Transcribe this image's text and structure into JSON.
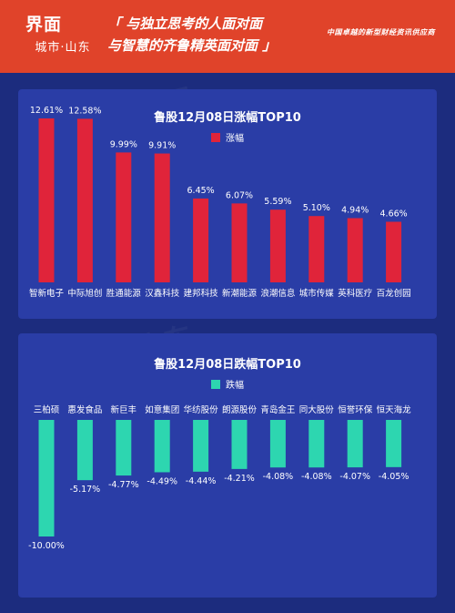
{
  "header": {
    "logo_main": "界面",
    "logo_sub": "城市·山东",
    "slogan_line1": "「 与独立思考的人面对面",
    "slogan_line2": "与智慧的齐鲁精英面对面 」",
    "tagline": "中国卓越的新型财经资讯供应商",
    "bg_color": "#e0432a"
  },
  "watermark": [
    "界面",
    "城市·山东"
  ],
  "chart_data": [
    {
      "type": "bar",
      "title": "鲁股12月08日涨幅TOP10",
      "series": [
        {
          "name": "涨幅",
          "color": "#e0243a",
          "values": [
            12.61,
            12.58,
            9.99,
            9.91,
            6.45,
            6.07,
            5.59,
            5.1,
            4.94,
            4.66
          ],
          "labels": [
            "12.61%",
            "12.58%",
            "9.99%",
            "9.91%",
            "6.45%",
            "6.07%",
            "5.59%",
            "5.10%",
            "4.94%",
            "4.66%"
          ]
        }
      ],
      "categories": [
        "智新电子",
        "中际旭创",
        "胜通能源",
        "汉鑫科技",
        "建邦科技",
        "新潮能源",
        "浪潮信息",
        "城市传媒",
        "英科医疗",
        "百龙创园"
      ],
      "ylim": [
        0,
        12.61
      ],
      "grid": false,
      "legend": "top-center"
    },
    {
      "type": "bar",
      "title": "鲁股12月08日跌幅TOP10",
      "series": [
        {
          "name": "跌幅",
          "color": "#2dd6b0",
          "values": [
            -10.0,
            -5.17,
            -4.77,
            -4.49,
            -4.44,
            -4.21,
            -4.08,
            -4.08,
            -4.07,
            -4.05
          ],
          "labels": [
            "-10.00%",
            "-5.17%",
            "-4.77%",
            "-4.49%",
            "-4.44%",
            "-4.21%",
            "-4.08%",
            "-4.08%",
            "-4.07%",
            "-4.05%"
          ]
        }
      ],
      "categories": [
        "三柏硕",
        "惠发食品",
        "新巨丰",
        "如意集团",
        "华纺股份",
        "朗源股份",
        "青岛金王",
        "同大股份",
        "恒誉环保",
        "恒天海龙"
      ],
      "ylim": [
        -10.0,
        0
      ],
      "grid": false,
      "legend": "top-center"
    }
  ]
}
